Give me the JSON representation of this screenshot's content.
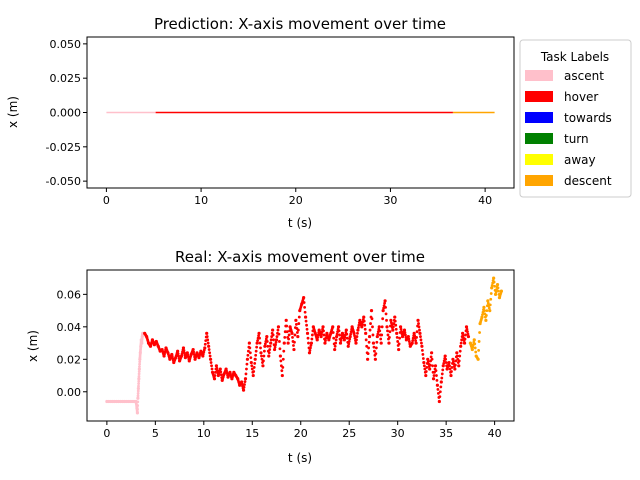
{
  "chart_data": [
    {
      "type": "line",
      "title": "Prediction: X-axis movement over time",
      "xlabel": "t (s)",
      "ylabel": "x (m)",
      "xlim": [
        -2.05,
        43.05
      ],
      "ylim": [
        -0.055,
        0.055
      ],
      "xticks": [
        "0",
        "10",
        "20",
        "30",
        "40"
      ],
      "yticks": [
        "-0.050",
        "-0.025",
        "0.000",
        "0.025",
        "0.050"
      ],
      "segments": [
        {
          "label": "ascent",
          "x": [
            0.0,
            5.2
          ],
          "y": [
            0.0,
            0.0
          ]
        },
        {
          "label": "hover",
          "x": [
            5.2,
            36.6
          ],
          "y": [
            0.0,
            0.0
          ]
        },
        {
          "label": "descent",
          "x": [
            36.6,
            41.0
          ],
          "y": [
            0.0,
            0.0
          ]
        }
      ]
    },
    {
      "type": "scatter",
      "title": "Real: X-axis movement over time",
      "xlabel": "t (s)",
      "ylabel": "x (m)",
      "xlim": [
        -2.05,
        42.0
      ],
      "ylim": [
        -0.018,
        0.075
      ],
      "xticks": [
        "0",
        "5",
        "10",
        "15",
        "20",
        "25",
        "30",
        "35",
        "40"
      ],
      "yticks": [
        "0.00",
        "0.02",
        "0.04",
        "0.06"
      ],
      "series": [
        {
          "label": "ascent",
          "points": [
            [
              0.0,
              -0.006
            ],
            [
              0.2,
              -0.006
            ],
            [
              0.4,
              -0.006
            ],
            [
              0.6,
              -0.006
            ],
            [
              0.8,
              -0.006
            ],
            [
              1.0,
              -0.006
            ],
            [
              1.2,
              -0.006
            ],
            [
              1.4,
              -0.006
            ],
            [
              1.6,
              -0.006
            ],
            [
              1.8,
              -0.006
            ],
            [
              2.0,
              -0.006
            ],
            [
              2.2,
              -0.006
            ],
            [
              2.4,
              -0.006
            ],
            [
              2.6,
              -0.006
            ],
            [
              2.8,
              -0.006
            ],
            [
              3.0,
              -0.006
            ],
            [
              3.1,
              -0.01
            ],
            [
              3.15,
              -0.013
            ],
            [
              3.2,
              -0.004
            ],
            [
              3.25,
              0.002
            ],
            [
              3.3,
              0.008
            ],
            [
              3.35,
              0.014
            ],
            [
              3.4,
              0.02
            ],
            [
              3.45,
              0.024
            ],
            [
              3.5,
              0.028
            ],
            [
              3.55,
              0.032
            ],
            [
              3.6,
              0.03
            ],
            [
              3.65,
              0.034
            ],
            [
              3.7,
              0.036
            ],
            [
              3.8,
              0.035
            ]
          ]
        },
        {
          "label": "hover",
          "points": [
            [
              3.9,
              0.036
            ],
            [
              4.1,
              0.034
            ],
            [
              4.3,
              0.03
            ],
            [
              4.5,
              0.028
            ],
            [
              4.7,
              0.032
            ],
            [
              4.9,
              0.029
            ],
            [
              5.1,
              0.031
            ],
            [
              5.3,
              0.028
            ],
            [
              5.5,
              0.025
            ],
            [
              5.7,
              0.026
            ],
            [
              5.9,
              0.022
            ],
            [
              6.1,
              0.027
            ],
            [
              6.3,
              0.024
            ],
            [
              6.5,
              0.02
            ],
            [
              6.7,
              0.023
            ],
            [
              6.9,
              0.018
            ],
            [
              7.1,
              0.021
            ],
            [
              7.3,
              0.025
            ],
            [
              7.5,
              0.019
            ],
            [
              7.7,
              0.022
            ],
            [
              7.9,
              0.027
            ],
            [
              8.1,
              0.021
            ],
            [
              8.3,
              0.024
            ],
            [
              8.5,
              0.019
            ],
            [
              8.7,
              0.023
            ],
            [
              8.9,
              0.026
            ],
            [
              9.1,
              0.02
            ],
            [
              9.3,
              0.024
            ],
            [
              9.5,
              0.021
            ],
            [
              9.7,
              0.025
            ],
            [
              9.9,
              0.022
            ],
            [
              10.1,
              0.027
            ],
            [
              10.3,
              0.036
            ],
            [
              10.5,
              0.028
            ],
            [
              10.7,
              0.02
            ],
            [
              10.9,
              0.012
            ],
            [
              11.1,
              0.008
            ],
            [
              11.3,
              0.016
            ],
            [
              11.5,
              0.01
            ],
            [
              11.7,
              0.014
            ],
            [
              11.9,
              0.007
            ],
            [
              12.1,
              0.011
            ],
            [
              12.3,
              0.014
            ],
            [
              12.5,
              0.009
            ],
            [
              12.7,
              0.012
            ],
            [
              12.9,
              0.008
            ],
            [
              13.1,
              0.012
            ],
            [
              13.3,
              0.01
            ],
            [
              13.5,
              0.008
            ],
            [
              13.7,
              0.004
            ],
            [
              13.9,
              0.006
            ],
            [
              14.1,
              0.001
            ],
            [
              14.3,
              0.008
            ],
            [
              14.5,
              0.02
            ],
            [
              14.7,
              0.03
            ],
            [
              14.9,
              0.018
            ],
            [
              15.1,
              0.01
            ],
            [
              15.3,
              0.02
            ],
            [
              15.5,
              0.03
            ],
            [
              15.7,
              0.036
            ],
            [
              15.9,
              0.024
            ],
            [
              16.1,
              0.016
            ],
            [
              16.3,
              0.028
            ],
            [
              16.5,
              0.034
            ],
            [
              16.7,
              0.022
            ],
            [
              16.9,
              0.03
            ],
            [
              17.1,
              0.038
            ],
            [
              17.3,
              0.026
            ],
            [
              17.5,
              0.032
            ],
            [
              17.7,
              0.04
            ],
            [
              17.9,
              0.022
            ],
            [
              18.1,
              0.01
            ],
            [
              18.3,
              0.03
            ],
            [
              18.5,
              0.044
            ],
            [
              18.7,
              0.03
            ],
            [
              18.9,
              0.04
            ],
            [
              19.1,
              0.036
            ],
            [
              19.3,
              0.026
            ],
            [
              19.5,
              0.044
            ],
            [
              19.7,
              0.034
            ],
            [
              19.9,
              0.05
            ],
            [
              20.1,
              0.054
            ],
            [
              20.3,
              0.058
            ],
            [
              20.5,
              0.046
            ],
            [
              20.7,
              0.036
            ],
            [
              20.9,
              0.024
            ],
            [
              21.1,
              0.03
            ],
            [
              21.3,
              0.04
            ],
            [
              21.5,
              0.036
            ],
            [
              21.7,
              0.032
            ],
            [
              21.9,
              0.038
            ],
            [
              22.1,
              0.034
            ],
            [
              22.3,
              0.04
            ],
            [
              22.5,
              0.03
            ],
            [
              22.7,
              0.036
            ],
            [
              22.9,
              0.032
            ],
            [
              23.1,
              0.036
            ],
            [
              23.3,
              0.04
            ],
            [
              23.5,
              0.026
            ],
            [
              23.7,
              0.034
            ],
            [
              23.9,
              0.04
            ],
            [
              24.1,
              0.03
            ],
            [
              24.3,
              0.036
            ],
            [
              24.5,
              0.032
            ],
            [
              24.7,
              0.038
            ],
            [
              24.9,
              0.028
            ],
            [
              25.1,
              0.034
            ],
            [
              25.3,
              0.04
            ],
            [
              25.5,
              0.036
            ],
            [
              25.7,
              0.03
            ],
            [
              25.9,
              0.038
            ],
            [
              26.1,
              0.044
            ],
            [
              26.3,
              0.04
            ],
            [
              26.5,
              0.046
            ],
            [
              26.7,
              0.036
            ],
            [
              26.9,
              0.02
            ],
            [
              27.1,
              0.034
            ],
            [
              27.3,
              0.05
            ],
            [
              27.5,
              0.03
            ],
            [
              27.7,
              0.02
            ],
            [
              27.9,
              0.034
            ],
            [
              28.1,
              0.04
            ],
            [
              28.3,
              0.03
            ],
            [
              28.5,
              0.05
            ],
            [
              28.7,
              0.056
            ],
            [
              28.9,
              0.04
            ],
            [
              29.1,
              0.03
            ],
            [
              29.3,
              0.044
            ],
            [
              29.5,
              0.038
            ],
            [
              29.7,
              0.046
            ],
            [
              29.9,
              0.036
            ],
            [
              30.1,
              0.026
            ],
            [
              30.3,
              0.04
            ],
            [
              30.5,
              0.034
            ],
            [
              30.7,
              0.038
            ],
            [
              30.9,
              0.032
            ],
            [
              31.1,
              0.034
            ],
            [
              31.3,
              0.028
            ],
            [
              31.5,
              0.03
            ],
            [
              31.7,
              0.036
            ],
            [
              31.9,
              0.03
            ],
            [
              32.1,
              0.044
            ],
            [
              32.3,
              0.036
            ],
            [
              32.5,
              0.028
            ],
            [
              32.7,
              0.018
            ],
            [
              32.9,
              0.01
            ],
            [
              33.1,
              0.02
            ],
            [
              33.3,
              0.014
            ],
            [
              33.5,
              0.024
            ],
            [
              33.7,
              0.008
            ],
            [
              33.9,
              0.016
            ],
            [
              34.1,
              0.004
            ],
            [
              34.3,
              -0.006
            ],
            [
              34.5,
              0.006
            ],
            [
              34.7,
              0.016
            ],
            [
              34.9,
              0.022
            ],
            [
              35.1,
              0.014
            ],
            [
              35.3,
              0.018
            ],
            [
              35.5,
              0.01
            ],
            [
              35.7,
              0.02
            ],
            [
              35.9,
              0.014
            ],
            [
              36.1,
              0.024
            ],
            [
              36.3,
              0.016
            ],
            [
              36.5,
              0.028
            ],
            [
              36.7,
              0.036
            ],
            [
              36.9,
              0.03
            ],
            [
              37.1,
              0.04
            ],
            [
              37.3,
              0.034
            ]
          ]
        },
        {
          "label": "descent",
          "points": [
            [
              37.5,
              0.03
            ],
            [
              37.7,
              0.026
            ],
            [
              37.9,
              0.032
            ],
            [
              38.1,
              0.022
            ],
            [
              38.3,
              0.02
            ],
            [
              38.5,
              0.042
            ],
            [
              38.7,
              0.046
            ],
            [
              38.9,
              0.052
            ],
            [
              39.1,
              0.044
            ],
            [
              39.3,
              0.056
            ],
            [
              39.5,
              0.05
            ],
            [
              39.7,
              0.064
            ],
            [
              39.9,
              0.07
            ],
            [
              40.1,
              0.06
            ],
            [
              40.3,
              0.066
            ],
            [
              40.5,
              0.058
            ],
            [
              40.7,
              0.062
            ]
          ]
        }
      ]
    }
  ],
  "legend": {
    "title": "Task Labels",
    "placement": "right of top panel",
    "items": [
      {
        "label": "ascent",
        "color": "#ffc0cb"
      },
      {
        "label": "hover",
        "color": "#ff0000"
      },
      {
        "label": "towards",
        "color": "#0000ff"
      },
      {
        "label": "turn",
        "color": "#008000"
      },
      {
        "label": "away",
        "color": "#ffff00"
      },
      {
        "label": "descent",
        "color": "#ffa500"
      }
    ]
  }
}
